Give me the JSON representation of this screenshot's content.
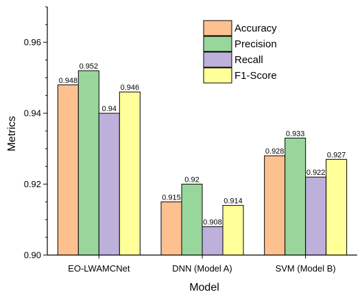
{
  "chart_data": {
    "type": "bar",
    "title": "",
    "xlabel": "Model",
    "ylabel": "Metrics",
    "ylim": [
      0.9,
      0.97
    ],
    "yticks": [
      "0.90",
      "0.92",
      "0.94",
      "0.96"
    ],
    "grid": false,
    "legend_position": "top-right",
    "categories": [
      "EO-LWAMCNet",
      "DNN (Model A)",
      "SVM (Model B)"
    ],
    "series": [
      {
        "name": "Accuracy",
        "color": "#FDC18F",
        "values": [
          0.948,
          0.915,
          0.928
        ],
        "labels": [
          "0.948",
          "0.915",
          "0.928"
        ]
      },
      {
        "name": "Precision",
        "color": "#98D69B",
        "values": [
          0.952,
          0.92,
          0.933
        ],
        "labels": [
          "0.952",
          "0.92",
          "0.933"
        ]
      },
      {
        "name": "Recall",
        "color": "#BDB0DA",
        "values": [
          0.94,
          0.908,
          0.922
        ],
        "labels": [
          "0.94",
          "0.908",
          "0.922"
        ]
      },
      {
        "name": "F1-Score",
        "color": "#FFFF99",
        "values": [
          0.946,
          0.914,
          0.927
        ],
        "labels": [
          "0.946",
          "0.914",
          "0.927"
        ]
      }
    ]
  }
}
